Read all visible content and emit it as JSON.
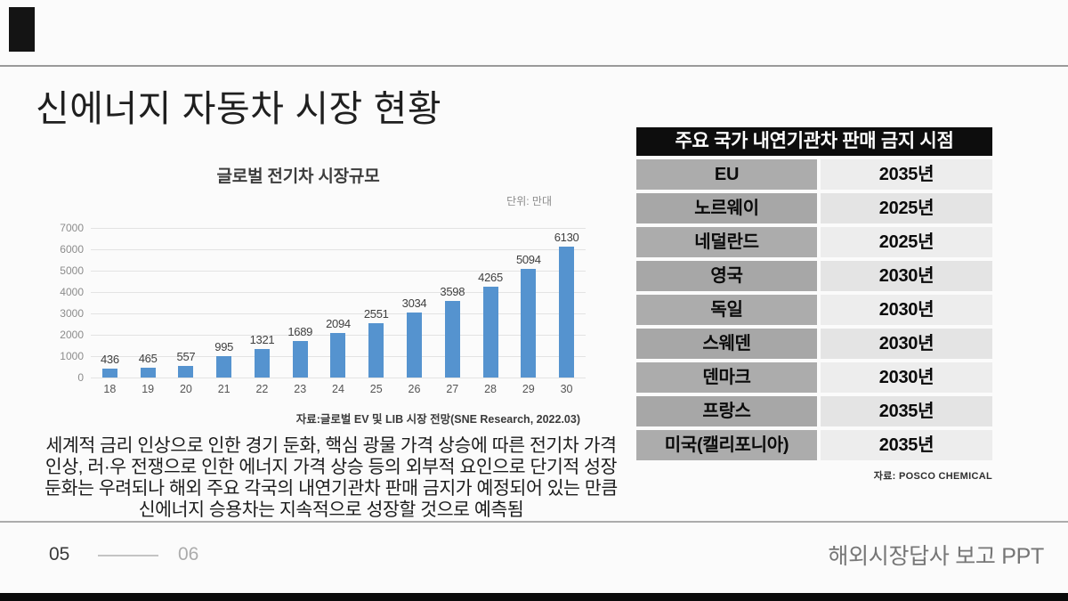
{
  "slide": {
    "title": "신에너지 자동차 시장 현황",
    "footer": {
      "page_current": "05",
      "page_next": "06",
      "report_title": "해외시장답사 보고 PPT"
    }
  },
  "chart_data": {
    "type": "bar",
    "title": "글로벌 전기차 시장규모",
    "unit_label": "단위: 만대",
    "categories": [
      "18",
      "19",
      "20",
      "21",
      "22",
      "23",
      "24",
      "25",
      "26",
      "27",
      "28",
      "29",
      "30"
    ],
    "values": [
      436,
      465,
      557,
      995,
      1321,
      1689,
      2094,
      2551,
      3034,
      3598,
      4265,
      5094,
      6130
    ],
    "xlabel": "",
    "ylabel": "",
    "ylim": [
      0,
      7000
    ],
    "ytick_step": 1000,
    "grid": true,
    "legend": "none",
    "bar_color": "#5593CF",
    "source": "자료:글로벌 EV 및 LIB 시장 전망(SNE Research, 2022.03)"
  },
  "summary": {
    "lines": [
      "세계적 금리 인상으로 인한 경기 둔화, 핵심 광물 가격 상승에 따른 전기차 가격",
      "인상, 러·우 전쟁으로 인한 에너지 가격 상승 등의 외부적 요인으로 단기적 성장",
      "둔화는 우려되나 해외 주요 각국의 내연기관차 판매 금지가 예정되어 있는 만큼",
      "신에너지 승용차는 지속적으로 성장할 것으로 예측됨"
    ]
  },
  "table": {
    "header": "주요 국가 내연기관차 판매 금지 시점",
    "rows": [
      {
        "country": "EU",
        "year": "2035년"
      },
      {
        "country": "노르웨이",
        "year": "2025년"
      },
      {
        "country": "네덜란드",
        "year": "2025년"
      },
      {
        "country": "영국",
        "year": "2030년"
      },
      {
        "country": "독일",
        "year": "2030년"
      },
      {
        "country": "스웨덴",
        "year": "2030년"
      },
      {
        "country": "덴마크",
        "year": "2030년"
      },
      {
        "country": "프랑스",
        "year": "2035년"
      },
      {
        "country": "미국(캘리포니아)",
        "year": "2035년"
      }
    ],
    "source": "자료: POSCO CHEMICAL",
    "header_bg": "#0d0d0d",
    "country_cell_bg": "#acacac",
    "year_cell_bg": "#ededed"
  },
  "colors": {
    "accent_black": "#141414",
    "rule_gray": "#9a9a9a",
    "background": "#FBFBFB"
  }
}
